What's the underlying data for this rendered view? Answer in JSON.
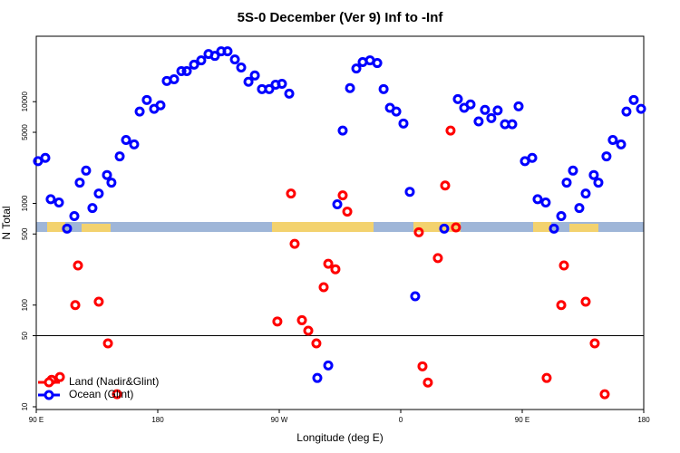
{
  "chart_data": {
    "type": "scatter",
    "title": "5S-0 December (Ver 9)   Inf to -Inf",
    "x_label": "Longitude (deg E)",
    "y_label": "N Total",
    "log_y": true,
    "legend_position": "bottom-left",
    "reference_line": 50,
    "xlim": [
      90,
      540
    ],
    "xticks": [
      {
        "value": 90,
        "label": "90 E"
      },
      {
        "value": 180,
        "label": "180"
      },
      {
        "value": 270,
        "label": "90 W"
      },
      {
        "value": 360,
        "label": "0"
      },
      {
        "value": 450,
        "label": "90 E"
      },
      {
        "value": 540,
        "label": "180"
      }
    ],
    "ylim": [
      9.4,
      44000
    ],
    "yticks": [
      10,
      50,
      100,
      500,
      1000,
      5000,
      10000
    ],
    "series": [
      {
        "name": "Land (Nadir&Glint)",
        "color": "#ff0000",
        "x": [
          101.4,
          107.5,
          118.9,
          120.9,
          136.3,
          143.1,
          149.8,
          278.7,
          281.4,
          268.6,
          286.8,
          291.5,
          297.5,
          302.9,
          306.3,
          311.6,
          317.0,
          320.4,
          373.4,
          376.1,
          380.1,
          387.5,
          392.9,
          396.9,
          400.9,
          468.1,
          478.9,
          480.9,
          497.0,
          503.7,
          511.1
        ],
        "values": [
          18.4,
          19.6,
          100,
          245,
          108,
          42,
          13.3,
          1250,
          400,
          69,
          71,
          56,
          42,
          150,
          255,
          225,
          1200,
          830,
          520,
          25,
          17.3,
          290,
          1500,
          5200,
          580,
          19.2,
          100,
          245,
          108,
          42,
          13.3
        ]
      },
      {
        "name": "Ocean (Glint)",
        "color": "#0000ff",
        "x": [
          91.3,
          96.7,
          100.7,
          106.8,
          112.8,
          118.2,
          122.2,
          126.9,
          131.6,
          136.3,
          142.4,
          145.7,
          151.8,
          156.5,
          162.5,
          166.6,
          171.9,
          177.3,
          182.0,
          186.7,
          192.1,
          197.5,
          201.5,
          206.9,
          212.2,
          217.6,
          222.3,
          227.0,
          231.7,
          237.1,
          241.8,
          247.2,
          251.9,
          257.2,
          262.6,
          267.3,
          272.0,
          277.4,
          298.2,
          306.3,
          313.0,
          317.0,
          322.4,
          327.1,
          331.8,
          337.2,
          342.6,
          347.3,
          352.0,
          356.7,
          362.0,
          366.7,
          370.7,
          392.2,
          402.3,
          407.0,
          411.7,
          417.7,
          422.4,
          427.1,
          431.8,
          437.2,
          442.6,
          447.3,
          452.0,
          457.4,
          461.4,
          467.4,
          473.5,
          478.9,
          482.9,
          487.6,
          492.3,
          497.0,
          503.0,
          506.4,
          512.4,
          517.1,
          523.2,
          527.2,
          532.6,
          538.0
        ],
        "values": [
          2600,
          2800,
          1100,
          1020,
          565,
          750,
          1600,
          2100,
          900,
          1250,
          1900,
          1600,
          2900,
          4200,
          3800,
          8000,
          10400,
          8500,
          9200,
          16000,
          16600,
          20000,
          20000,
          23100,
          25500,
          29400,
          28200,
          31300,
          31300,
          26000,
          21700,
          15700,
          18100,
          13300,
          13300,
          14700,
          15000,
          12000,
          19.2,
          25.5,
          980,
          5200,
          13600,
          21200,
          24500,
          25500,
          24000,
          13300,
          8700,
          8000,
          6100,
          1300,
          122,
          565,
          10600,
          8700,
          9400,
          6400,
          8300,
          6900,
          8200,
          6000,
          6000,
          9000,
          2600,
          2800,
          1100,
          1020,
          565,
          750,
          1600,
          2100,
          900,
          1250,
          1900,
          1600,
          2900,
          4200,
          3800,
          8000,
          10400,
          8500
        ]
      }
    ]
  }
}
